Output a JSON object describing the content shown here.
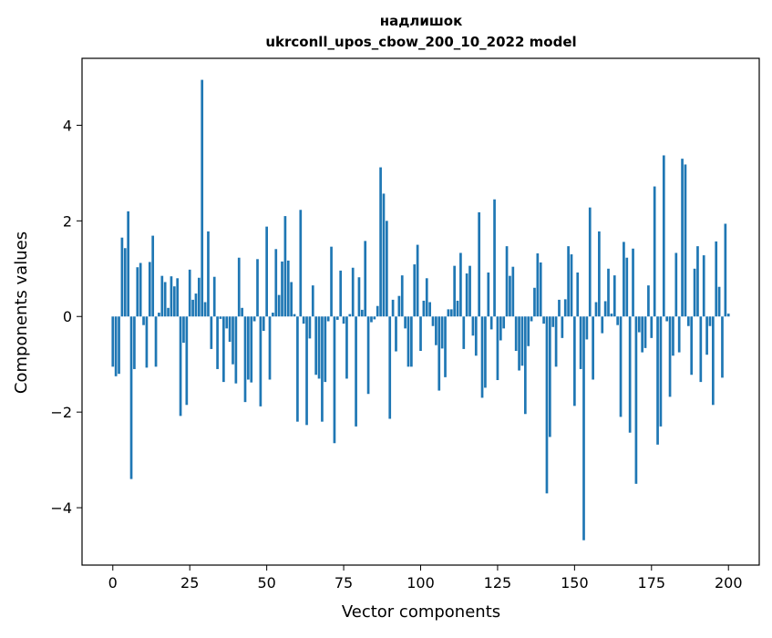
{
  "chart_data": {
    "type": "bar",
    "title_line1": "надлишок",
    "title_line2": "ukrconll_upos_cbow_200_10_2022 model",
    "xlabel": "Vector components",
    "ylabel": "Components values",
    "xlim": [
      -10,
      210
    ],
    "ylim": [
      -5.2,
      5.4
    ],
    "xticks": [
      0,
      25,
      50,
      75,
      100,
      125,
      150,
      175,
      200
    ],
    "yticks": [
      -4,
      -2,
      0,
      2,
      4
    ],
    "ytick_labels": [
      "−4",
      "−2",
      "0",
      "2",
      "4"
    ],
    "grid": false,
    "bar_color": "#1f77b4",
    "values": [
      -1.05,
      -1.25,
      -1.2,
      1.65,
      1.43,
      2.2,
      -3.4,
      -1.1,
      1.03,
      1.12,
      -0.18,
      -1.07,
      1.14,
      1.69,
      -1.05,
      0.08,
      0.85,
      0.72,
      0.18,
      0.84,
      0.63,
      0.8,
      -2.08,
      -0.55,
      -1.85,
      0.98,
      0.35,
      0.48,
      0.81,
      4.95,
      0.3,
      1.78,
      -0.68,
      0.83,
      -1.1,
      -0.05,
      -1.37,
      -0.25,
      -0.53,
      -1.0,
      -1.4,
      1.23,
      0.18,
      -1.79,
      -1.32,
      -1.38,
      -0.1,
      1.2,
      -1.88,
      -0.3,
      1.88,
      -1.32,
      0.08,
      1.41,
      0.45,
      1.15,
      2.1,
      1.17,
      0.72,
      0.05,
      -2.2,
      2.23,
      -0.15,
      -2.27,
      -0.46,
      0.65,
      -1.22,
      -1.3,
      -2.2,
      -1.37,
      -0.1,
      1.46,
      -2.65,
      -0.07,
      0.96,
      -0.15,
      -1.3,
      0.05,
      1.02,
      -2.3,
      0.82,
      0.14,
      1.58,
      -1.62,
      -0.12,
      -0.06,
      0.22,
      3.12,
      2.57,
      2.0,
      -2.14,
      0.35,
      -0.73,
      0.43,
      0.86,
      -0.25,
      -1.05,
      -1.05,
      1.09,
      1.5,
      -0.72,
      0.33,
      0.8,
      0.3,
      -0.2,
      -0.6,
      -1.55,
      -0.67,
      -1.27,
      0.15,
      0.15,
      1.06,
      0.33,
      1.33,
      -0.68,
      0.9,
      1.06,
      -0.4,
      -0.82,
      2.18,
      -1.7,
      -1.49,
      0.92,
      -0.27,
      2.45,
      -1.33,
      -0.5,
      -0.25,
      1.47,
      0.85,
      1.04,
      -0.72,
      -1.13,
      -1.03,
      -2.04,
      -0.62,
      -0.1,
      0.6,
      1.32,
      1.13,
      -0.15,
      -3.7,
      -2.52,
      -0.22,
      -1.05,
      0.35,
      -0.45,
      0.36,
      1.47,
      1.3,
      -1.87,
      0.92,
      -1.1,
      -4.68,
      -0.48,
      2.28,
      -1.32,
      0.3,
      1.78,
      -0.35,
      0.32,
      1.0,
      0.06,
      0.86,
      -0.18,
      -2.1,
      1.56,
      1.23,
      -2.43,
      1.42,
      -3.5,
      -0.33,
      -0.75,
      -0.66,
      0.65,
      -0.45,
      2.72,
      -2.68,
      -2.3,
      3.37,
      -0.1,
      -1.68,
      -0.82,
      1.33,
      -0.75,
      3.3,
      3.18,
      -0.2,
      -1.22,
      1.0,
      1.47,
      -1.37,
      1.28,
      -0.8,
      -0.2,
      -1.85,
      1.57,
      0.62,
      -1.28,
      1.94,
      0.06
    ]
  }
}
